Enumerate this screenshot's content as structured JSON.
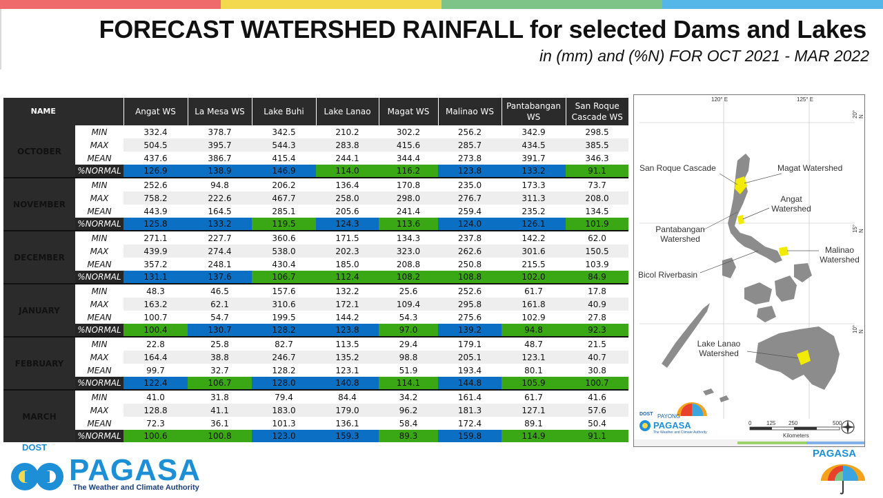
{
  "header": {
    "title": "FORECAST WATERSHED RAINFALL  for selected Dams and Lakes",
    "subtitle": "in (mm) and (%N) FOR OCT 2021 - MAR 2022"
  },
  "table": {
    "name_header": "NAME",
    "columns": [
      "Angat WS",
      "La Mesa WS",
      "Lake Buhi",
      "Lake Lanao",
      "Magat WS",
      "Malinao WS",
      "Pantabangan WS",
      "San Roque Cascade WS"
    ],
    "row_labels": [
      "MIN",
      "MAX",
      "MEAN",
      "%NORMAL"
    ],
    "months": [
      {
        "name": "OCTOBER",
        "min": [
          "332.4",
          "378.7",
          "342.5",
          "210.2",
          "302.2",
          "256.2",
          "342.9",
          "298.5"
        ],
        "max": [
          "504.5",
          "395.7",
          "544.3",
          "283.8",
          "415.6",
          "285.7",
          "434.5",
          "385.5"
        ],
        "mean": [
          "437.6",
          "386.7",
          "415.4",
          "244.1",
          "344.4",
          "273.8",
          "391.7",
          "346.3"
        ],
        "normal": [
          "126.9",
          "138.9",
          "146.9",
          "114.0",
          "116.2",
          "123.8",
          "133.2",
          "91.1"
        ],
        "normal_colors": [
          "blue",
          "blue",
          "blue",
          "green",
          "green",
          "blue",
          "blue",
          "green"
        ]
      },
      {
        "name": "NOVEMBER",
        "min": [
          "252.6",
          "94.8",
          "206.2",
          "136.4",
          "170.8",
          "235.0",
          "173.3",
          "73.7"
        ],
        "max": [
          "758.2",
          "222.6",
          "467.7",
          "258.0",
          "298.0",
          "276.7",
          "311.3",
          "208.0"
        ],
        "mean": [
          "443.9",
          "164.5",
          "285.1",
          "205.6",
          "241.4",
          "259.4",
          "235.2",
          "134.5"
        ],
        "normal": [
          "125.8",
          "133.2",
          "119.5",
          "124.3",
          "113.6",
          "124.0",
          "126.1",
          "101.9"
        ],
        "normal_colors": [
          "blue",
          "blue",
          "green",
          "blue",
          "green",
          "blue",
          "blue",
          "green"
        ]
      },
      {
        "name": "DECEMBER",
        "min": [
          "271.1",
          "227.7",
          "360.6",
          "171.5",
          "134.3",
          "237.8",
          "142.2",
          "62.0"
        ],
        "max": [
          "439.9",
          "274.4",
          "538.0",
          "202.3",
          "323.0",
          "262.6",
          "301.6",
          "150.5"
        ],
        "mean": [
          "357.2",
          "248.1",
          "430.4",
          "185.0",
          "208.8",
          "250.8",
          "215.5",
          "103.9"
        ],
        "normal": [
          "131.1",
          "137.6",
          "106.7",
          "112.4",
          "108.2",
          "108.8",
          "102.0",
          "84.9"
        ],
        "normal_colors": [
          "blue",
          "blue",
          "green",
          "green",
          "green",
          "green",
          "green",
          "green"
        ]
      },
      {
        "name": "JANUARY",
        "min": [
          "48.3",
          "46.5",
          "157.6",
          "132.2",
          "25.6",
          "252.6",
          "61.7",
          "17.8"
        ],
        "max": [
          "163.2",
          "62.1",
          "310.6",
          "172.1",
          "109.4",
          "295.8",
          "161.8",
          "40.9"
        ],
        "mean": [
          "100.7",
          "54.7",
          "199.5",
          "144.2",
          "54.3",
          "275.6",
          "102.9",
          "27.8"
        ],
        "normal": [
          "100.4",
          "130.7",
          "128.2",
          "123.8",
          "97.0",
          "139.2",
          "94.8",
          "92.3"
        ],
        "normal_colors": [
          "green",
          "blue",
          "blue",
          "blue",
          "green",
          "blue",
          "green",
          "green"
        ]
      },
      {
        "name": "FEBRUARY",
        "min": [
          "22.8",
          "25.8",
          "82.7",
          "113.5",
          "29.4",
          "179.1",
          "48.7",
          "21.5"
        ],
        "max": [
          "164.4",
          "38.8",
          "246.7",
          "135.2",
          "98.8",
          "205.1",
          "123.1",
          "40.7"
        ],
        "mean": [
          "99.7",
          "32.7",
          "128.2",
          "123.1",
          "51.9",
          "193.4",
          "80.1",
          "30.8"
        ],
        "normal": [
          "122.4",
          "106.7",
          "128.0",
          "140.8",
          "114.1",
          "144.8",
          "105.9",
          "100.7"
        ],
        "normal_colors": [
          "blue",
          "green",
          "blue",
          "blue",
          "green",
          "blue",
          "green",
          "green"
        ]
      },
      {
        "name": "MARCH",
        "min": [
          "41.0",
          "31.8",
          "79.4",
          "84.4",
          "34.2",
          "161.4",
          "61.7",
          "41.6"
        ],
        "max": [
          "128.8",
          "41.1",
          "183.0",
          "179.0",
          "96.2",
          "181.3",
          "127.1",
          "57.6"
        ],
        "mean": [
          "72.3",
          "36.1",
          "101.3",
          "136.1",
          "58.4",
          "172.4",
          "89.1",
          "50.4"
        ],
        "normal": [
          "100.6",
          "100.8",
          "123.0",
          "159.3",
          "89.3",
          "159.8",
          "114.9",
          "91.1"
        ],
        "normal_colors": [
          "green",
          "green",
          "blue",
          "blue",
          "green",
          "blue",
          "green",
          "green"
        ]
      }
    ]
  },
  "map": {
    "lon_ticks": [
      "120° E",
      "125° E"
    ],
    "lat_ticks": [
      "20° N",
      "15° N",
      "10° N"
    ],
    "labels": {
      "san_roque": "San Roque Cascade",
      "magat": "Magat Watershed",
      "angat": "Angat Watershed",
      "pantabangan": "Pantabangan Watershed",
      "malinao": "Malinao Watershed",
      "bicol": "Bicol Riverbasin",
      "lanao": "Lake Lanao Watershed"
    },
    "scale_ticks": [
      "0",
      "125",
      "250",
      "500"
    ],
    "scale_unit": "Kilometers",
    "logo_dost": "DOST",
    "logo_payong": "PAYONG",
    "logo_pagasa": "PAGASA",
    "logo_tagline": "The Weather and Climate Authority"
  },
  "footer": {
    "dost": "DOST",
    "pagasa": "PAGASA",
    "tagline": "The Weather and Climate Authority",
    "right_pagasa": "PAGASA"
  },
  "colors": {
    "above_normal": "#0b6fc4",
    "near_normal": "#3aa815",
    "header_bg": "#2b2b2b",
    "pagasa_blue": "#1d8fd6"
  }
}
